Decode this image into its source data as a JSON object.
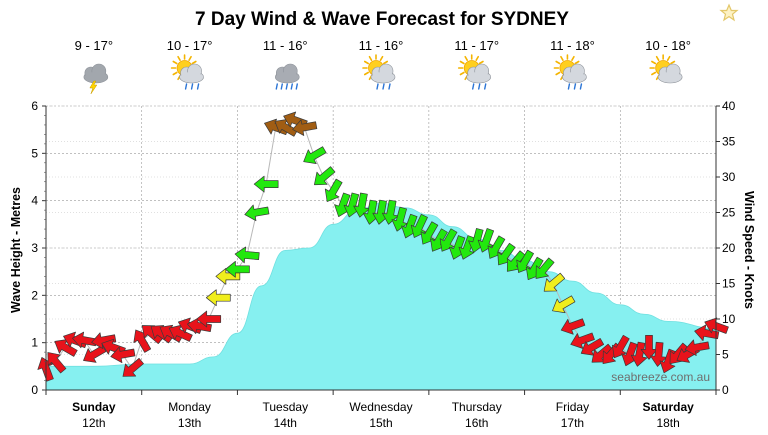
{
  "chart_data": {
    "type": "area",
    "title": "7 Day Wind & Wave Forecast for SYDNEY",
    "ylabel_left": "Wave Height - Metres",
    "ylabel_right": "Wind Speed - Knots",
    "ylim_left": [
      0,
      6
    ],
    "ylim_right": [
      0,
      40
    ],
    "yticks_left": [
      "0",
      "1",
      "2",
      "3",
      "4",
      "5",
      "6"
    ],
    "yticks_right": [
      "0",
      "5",
      "10",
      "15",
      "20",
      "25",
      "30",
      "35",
      "40"
    ],
    "grid": true,
    "days": [
      {
        "name": "Sunday",
        "date": "12th",
        "temp": "9 - 17°",
        "weather": "thunderstorm-icon",
        "bold": true
      },
      {
        "name": "Monday",
        "date": "13th",
        "temp": "10 - 17°",
        "weather": "sun-cloud-shower-icon",
        "bold": false
      },
      {
        "name": "Tuesday",
        "date": "14th",
        "temp": "11 - 16°",
        "weather": "rain-cloud-icon",
        "bold": false
      },
      {
        "name": "Wednesday",
        "date": "15th",
        "temp": "11 - 16°",
        "weather": "sun-cloud-shower-icon",
        "bold": false
      },
      {
        "name": "Thursday",
        "date": "16th",
        "temp": "11 - 17°",
        "weather": "sun-cloud-shower-icon",
        "bold": false
      },
      {
        "name": "Friday",
        "date": "17th",
        "temp": "11 - 18°",
        "weather": "sun-cloud-shower-icon",
        "bold": false
      },
      {
        "name": "Saturday",
        "date": "18th",
        "temp": "10 - 18°",
        "weather": "sun-cloud-icon",
        "bold": true
      }
    ],
    "wave_series": {
      "x_days": [
        0,
        0.5,
        1.0,
        1.5,
        1.75,
        2.0,
        2.25,
        2.5,
        2.75,
        3.0,
        3.25,
        3.5,
        3.75,
        4.0,
        4.25,
        4.5,
        4.75,
        5.0,
        5.25,
        5.5,
        5.75,
        6.0,
        6.25,
        6.5,
        7.0
      ],
      "wave_height_m": [
        0.5,
        0.5,
        0.55,
        0.55,
        0.7,
        1.2,
        2.2,
        2.95,
        3.0,
        3.5,
        3.8,
        3.95,
        3.85,
        3.7,
        3.45,
        3.2,
        2.95,
        2.75,
        2.5,
        2.3,
        2.05,
        1.8,
        1.6,
        1.45,
        1.3
      ]
    },
    "wind_series": {
      "x_days": [
        0.0,
        0.1,
        0.2,
        0.3,
        0.4,
        0.5,
        0.6,
        0.7,
        0.8,
        0.9,
        1.0,
        1.1,
        1.2,
        1.3,
        1.4,
        1.5,
        1.6,
        1.7,
        1.8,
        1.9,
        2.0,
        2.1,
        2.2,
        2.3,
        2.4,
        2.5,
        2.6,
        2.7,
        2.8,
        2.9,
        3.0,
        3.1,
        3.2,
        3.3,
        3.4,
        3.5,
        3.6,
        3.7,
        3.8,
        3.9,
        4.0,
        4.1,
        4.2,
        4.3,
        4.4,
        4.5,
        4.6,
        4.7,
        4.8,
        4.9,
        5.0,
        5.1,
        5.2,
        5.3,
        5.4,
        5.5,
        5.6,
        5.7,
        5.8,
        5.9,
        6.0,
        6.1,
        6.2,
        6.3,
        6.4,
        6.5,
        6.6,
        6.7,
        6.8,
        6.9,
        7.0
      ],
      "speed_kn": [
        3,
        4,
        6,
        7,
        7,
        5,
        7,
        6,
        5,
        3,
        7,
        8,
        8,
        8,
        8,
        9,
        9,
        10,
        13,
        16,
        17,
        19,
        25,
        29,
        37,
        37,
        38,
        37,
        33,
        30,
        28,
        26,
        26,
        26,
        25,
        25,
        25,
        24,
        23,
        23,
        22,
        21,
        21,
        20,
        20,
        21,
        21,
        20,
        19,
        18,
        18,
        17,
        17,
        15,
        12,
        9,
        7,
        6,
        5,
        5,
        6,
        5,
        5,
        6,
        5,
        4,
        5,
        5,
        6,
        8,
        9
      ],
      "direction_deg": [
        250,
        230,
        210,
        200,
        190,
        150,
        170,
        200,
        170,
        140,
        240,
        220,
        215,
        210,
        205,
        200,
        190,
        180,
        180,
        180,
        180,
        185,
        170,
        180,
        200,
        210,
        200,
        170,
        150,
        140,
        120,
        110,
        105,
        100,
        100,
        100,
        100,
        105,
        110,
        115,
        120,
        120,
        120,
        110,
        110,
        105,
        110,
        120,
        125,
        130,
        120,
        120,
        130,
        140,
        150,
        160,
        160,
        150,
        140,
        130,
        120,
        110,
        100,
        90,
        95,
        110,
        130,
        150,
        170,
        190,
        200
      ]
    },
    "wind_colors": {
      "light": "#e8131b",
      "moderate": "#f0ee1c",
      "fresh": "#22e80e",
      "strong": "#a15d13"
    },
    "wave_fill": "#86f0f0",
    "watermark": "seabreeze.com.au"
  },
  "ui": {
    "favourite_icon": "star-outline-icon"
  }
}
